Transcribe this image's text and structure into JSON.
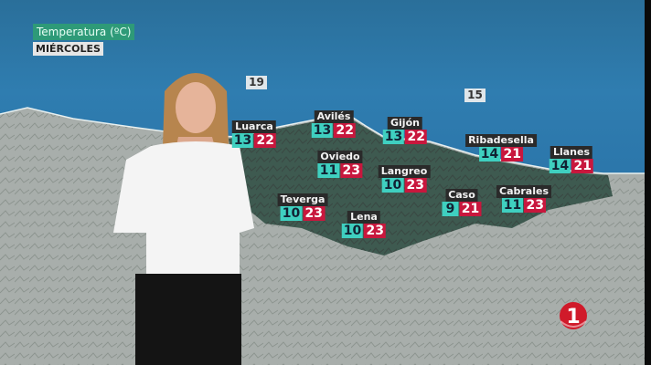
{
  "header": {
    "title": "Temperatura (ºC)",
    "day": "MIÉRCOLES"
  },
  "sea_temps": [
    {
      "value": "19"
    },
    {
      "value": "15"
    }
  ],
  "cities": [
    {
      "name": "Luarca",
      "min": "13",
      "max": "22"
    },
    {
      "name": "Avilés",
      "min": "13",
      "max": "22"
    },
    {
      "name": "Gijón",
      "min": "13",
      "max": "22"
    },
    {
      "name": "Oviedo",
      "min": "11",
      "max": "23"
    },
    {
      "name": "Langreo",
      "min": "10",
      "max": "23"
    },
    {
      "name": "Ribadesella",
      "min": "14",
      "max": "21"
    },
    {
      "name": "Llanes",
      "min": "14",
      "max": "21"
    },
    {
      "name": "Teverga",
      "min": "10",
      "max": "23"
    },
    {
      "name": "Lena",
      "min": "10",
      "max": "23"
    },
    {
      "name": "Caso",
      "min": "9",
      "max": "21"
    },
    {
      "name": "Cabrales",
      "min": "11",
      "max": "23"
    }
  ],
  "logo": {
    "text": "1"
  },
  "colors": {
    "min": "#3fd0c0",
    "max": "#c8173d",
    "title_bg": "#2e9a78",
    "sea": "#2c77ab"
  }
}
